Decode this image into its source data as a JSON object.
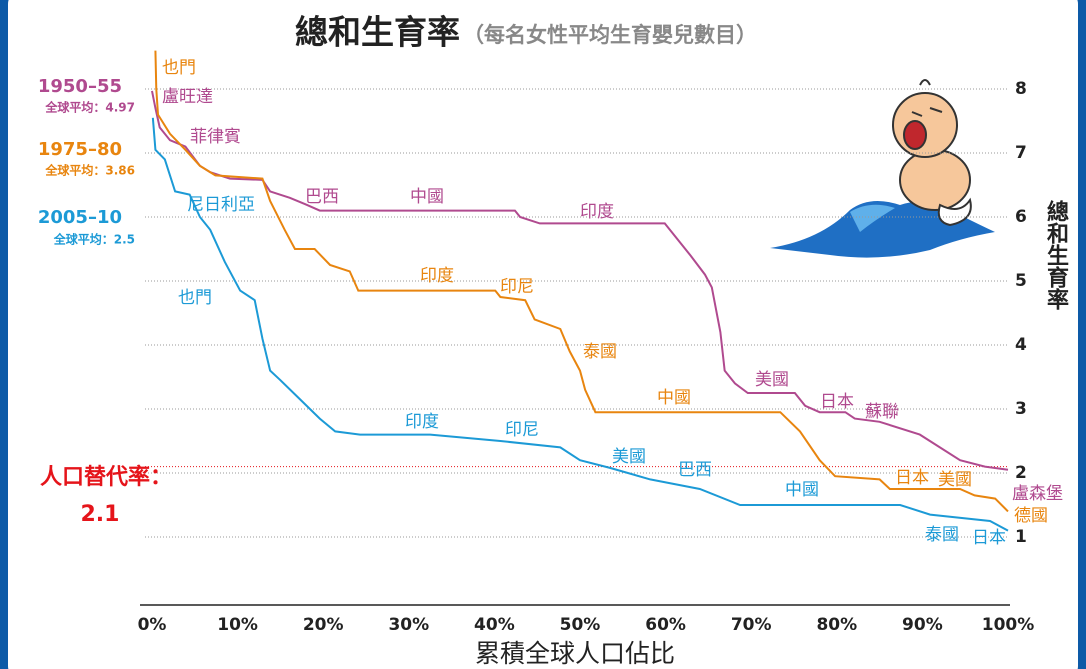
{
  "chart_data": {
    "type": "line",
    "title": "總和生育率",
    "subtitle": "（每名女性平均生育嬰兒數目）",
    "x_label": "累積全球人口佔比",
    "y_label": "總和生育率",
    "xlim": [
      0,
      100
    ],
    "ylim": [
      0,
      8.6
    ],
    "xticks": [
      {
        "value": 0,
        "label": "0%"
      },
      {
        "value": 10,
        "label": "10%"
      },
      {
        "value": 20,
        "label": "20%"
      },
      {
        "value": 30,
        "label": "30%"
      },
      {
        "value": 40,
        "label": "40%"
      },
      {
        "value": 50,
        "label": "50%"
      },
      {
        "value": 60,
        "label": "60%"
      },
      {
        "value": 70,
        "label": "70%"
      },
      {
        "value": 80,
        "label": "80%"
      },
      {
        "value": 90,
        "label": "90%"
      },
      {
        "value": 100,
        "label": "100%"
      }
    ],
    "yticks": [
      1,
      2,
      3,
      4,
      5,
      6,
      7,
      8
    ],
    "grid": true,
    "replacement_rate": {
      "label": "人口替代率：",
      "value": 2.1,
      "color": "#e5141a"
    },
    "series": [
      {
        "name": "1950–55",
        "note": "全球平均：4.97",
        "color": "#b04a8f",
        "x": [
          0,
          0.4,
          0.9,
          2.1,
          3.9,
          5.6,
          6.8,
          9.1,
          12.9,
          13.8,
          16.1,
          17.9,
          19.6,
          42.4,
          43,
          45.3,
          59.9,
          62.9,
          64.6,
          65.4,
          66.4,
          66.9,
          68.1,
          69.6,
          75.1,
          76.3,
          78,
          81,
          82.1,
          85,
          89.7,
          94.4,
          97.3,
          100
        ],
        "values": [
          7.97,
          7.7,
          7.4,
          7.2,
          7.1,
          6.8,
          6.7,
          6.6,
          6.58,
          6.4,
          6.3,
          6.2,
          6.1,
          6.1,
          6.0,
          5.9,
          5.9,
          5.4,
          5.1,
          4.9,
          4.2,
          3.6,
          3.4,
          3.25,
          3.25,
          3.05,
          2.95,
          2.95,
          2.85,
          2.8,
          2.6,
          2.2,
          2.1,
          2.05
        ],
        "labels": [
          "盧旺達",
          "菲律賓",
          "巴西",
          "中國",
          "印度",
          "美國",
          "日本",
          "蘇聯",
          "盧森堡"
        ]
      },
      {
        "name": "1975–80",
        "note": "全球平均：3.86",
        "color": "#e8850f",
        "x": [
          0.4,
          0.5,
          0.7,
          2.1,
          3.9,
          5.6,
          7.4,
          12.9,
          13.8,
          15.5,
          16.7,
          19,
          20.8,
          23.1,
          24.1,
          40.1,
          40.7,
          43.6,
          44.7,
          47.7,
          48.8,
          50,
          50.6,
          51.8,
          73.4,
          75.7,
          78,
          79.8,
          85,
          86.2,
          94.4,
          96.1,
          98.5,
          100
        ],
        "values": [
          8.6,
          8,
          7.6,
          7.3,
          7.05,
          6.8,
          6.65,
          6.6,
          6.25,
          5.8,
          5.5,
          5.5,
          5.25,
          5.15,
          4.85,
          4.85,
          4.75,
          4.7,
          4.4,
          4.25,
          3.9,
          3.6,
          3.3,
          2.95,
          2.95,
          2.65,
          2.2,
          1.95,
          1.9,
          1.75,
          1.75,
          1.65,
          1.6,
          1.4
        ],
        "labels": [
          "也門",
          "印度",
          "印尼",
          "泰國",
          "中國",
          "日本",
          "美國",
          "德國"
        ]
      },
      {
        "name": "2005–10",
        "note": "全球平均：2.5",
        "color": "#1c9ad6",
        "x": [
          0.1,
          0.4,
          1.5,
          2.7,
          4.4,
          5.6,
          6.8,
          8.5,
          10.3,
          12,
          12.9,
          13.8,
          15,
          17.3,
          19.6,
          21.4,
          24.3,
          32.5,
          40.7,
          47.7,
          50,
          53.5,
          58.2,
          64,
          68.7,
          87.4,
          90.9,
          97.9,
          100
        ],
        "values": [
          7.55,
          7.05,
          6.9,
          6.4,
          6.35,
          6.0,
          5.8,
          5.3,
          4.85,
          4.7,
          4.1,
          3.6,
          3.45,
          3.15,
          2.85,
          2.65,
          2.6,
          2.6,
          2.5,
          2.4,
          2.2,
          2.08,
          1.9,
          1.75,
          1.5,
          1.5,
          1.35,
          1.25,
          1.1
        ],
        "labels": [
          "尼日利亞",
          "也門",
          "印度",
          "印尼",
          "美國",
          "巴西",
          "中國",
          "泰國",
          "日本"
        ]
      }
    ]
  }
}
